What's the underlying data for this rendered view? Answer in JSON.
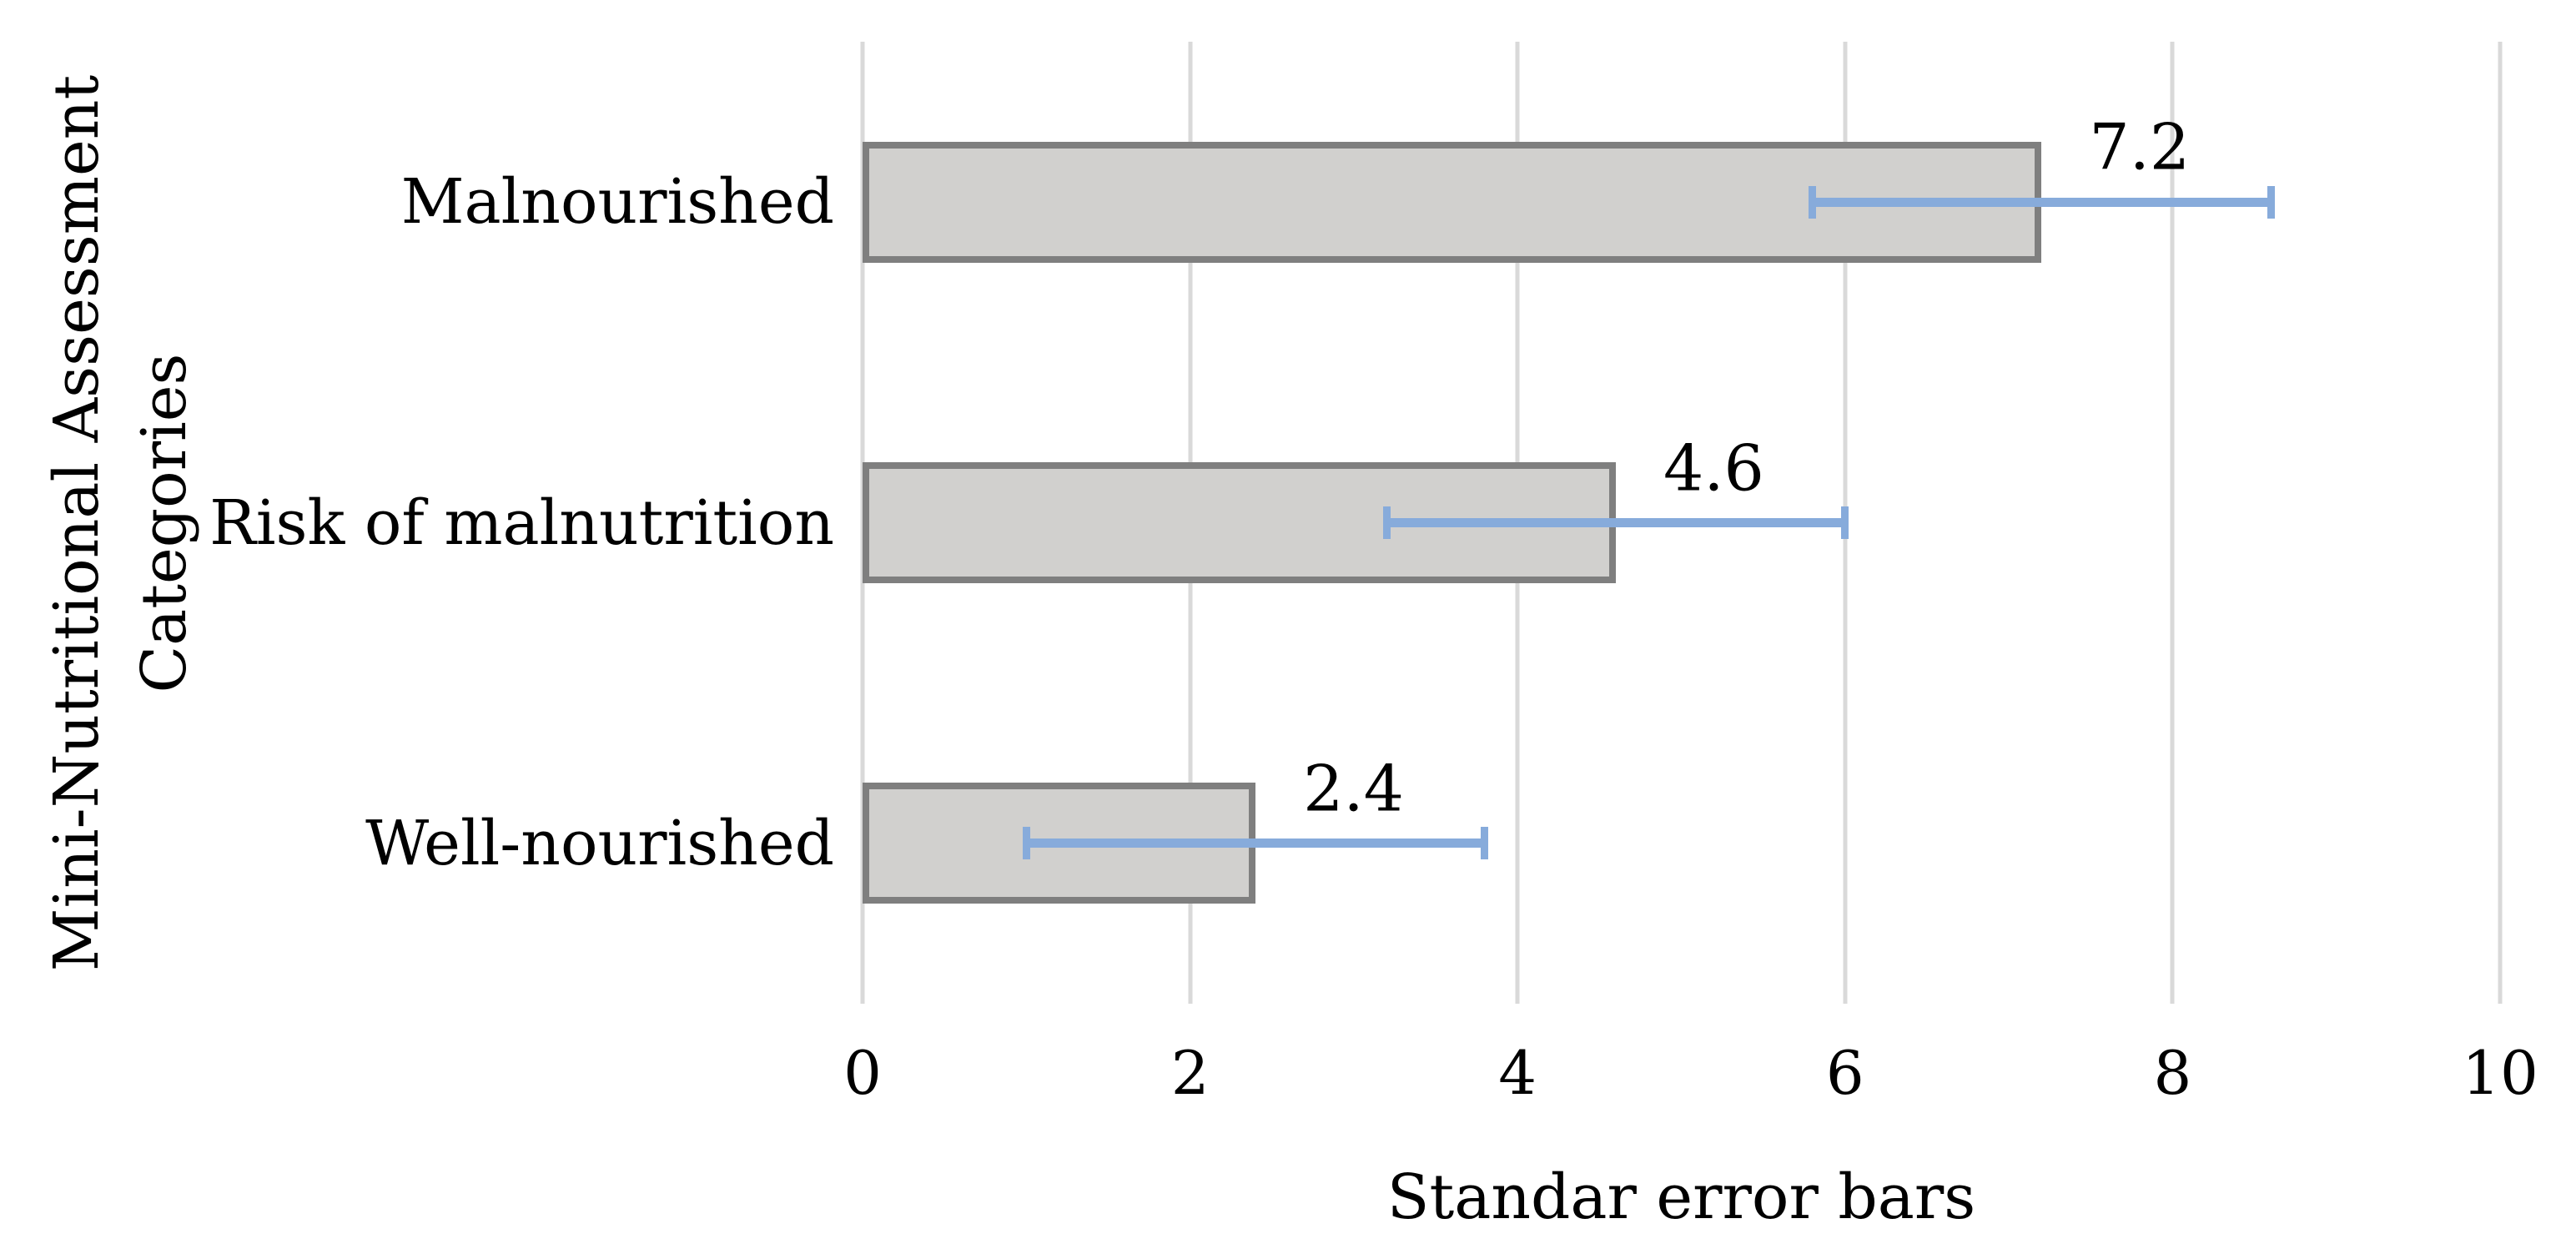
{
  "chart_data": {
    "type": "bar",
    "orientation": "horizontal",
    "title": "",
    "categories": [
      "Malnourished",
      "Risk of malnutrition",
      "Well-nourished"
    ],
    "values": [
      7.2,
      4.6,
      2.4
    ],
    "value_labels": [
      "7.2",
      "4.6",
      "2.4"
    ],
    "error_bars": {
      "plus": 1.4,
      "minus": 1.4
    },
    "xlabel": "Standar error bars",
    "ylabel_line1": "Mini-Nutritional Assessment",
    "ylabel_line2": "Categories",
    "x_ticks": [
      0,
      2,
      4,
      6,
      8,
      10
    ],
    "xlim": [
      0,
      10
    ],
    "grid": "vertical-on",
    "legend": "none",
    "colors": {
      "bar_fill": "#d1d0ce",
      "bar_border": "#7f7f7f",
      "error_bar": "#87abdb",
      "gridline": "#d9d9d9",
      "text": "#000000",
      "background": "#ffffff"
    }
  }
}
